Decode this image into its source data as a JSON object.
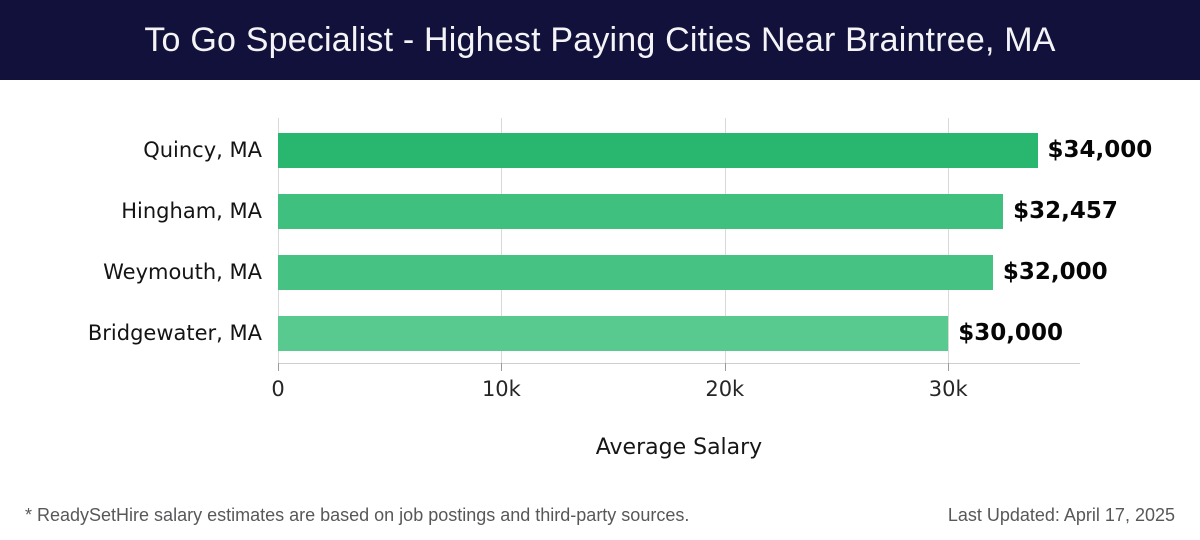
{
  "header": {
    "bg_color": "#12113b",
    "text_color": "#f4f4f6"
  },
  "chart_data": {
    "type": "bar",
    "orientation": "horizontal",
    "title": "To Go Specialist - Highest Paying Cities Near Braintree, MA",
    "categories": [
      "Quincy, MA",
      "Hingham, MA",
      "Weymouth, MA",
      "Bridgewater, MA"
    ],
    "values": [
      34000,
      32457,
      32000,
      30000
    ],
    "value_labels": [
      "$34,000",
      "$32,457",
      "$32,000",
      "$30,000"
    ],
    "bar_colors": [
      "#29b770",
      "#3fc07e",
      "#46c283",
      "#58c98f"
    ],
    "xlabel": "Average Salary",
    "x_ticks": [
      "0",
      "10k",
      "20k",
      "30k"
    ],
    "x_tick_values": [
      0,
      10000,
      20000,
      30000
    ],
    "xlim": [
      0,
      35900
    ],
    "grid": true,
    "grid_color": "#d9d9d9",
    "legend": false,
    "value_label_color": "#060606",
    "category_label_color": "#141414"
  },
  "footer": {
    "note": "* ReadySetHire salary estimates are based on job postings and third-party sources.",
    "last_updated": "Last Updated: April 17, 2025"
  }
}
